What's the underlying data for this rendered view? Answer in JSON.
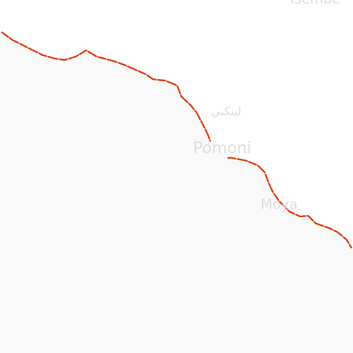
{
  "map": {
    "colors": {
      "water": "#ffffff",
      "land": "#f9f9f9",
      "boundary": "#e03a0a",
      "label": "#dddddd"
    },
    "labels": {
      "top_cut": "Tsembe",
      "arabic": "لينكني",
      "pomoni": "Pomoni",
      "moya": "Moya"
    }
  }
}
